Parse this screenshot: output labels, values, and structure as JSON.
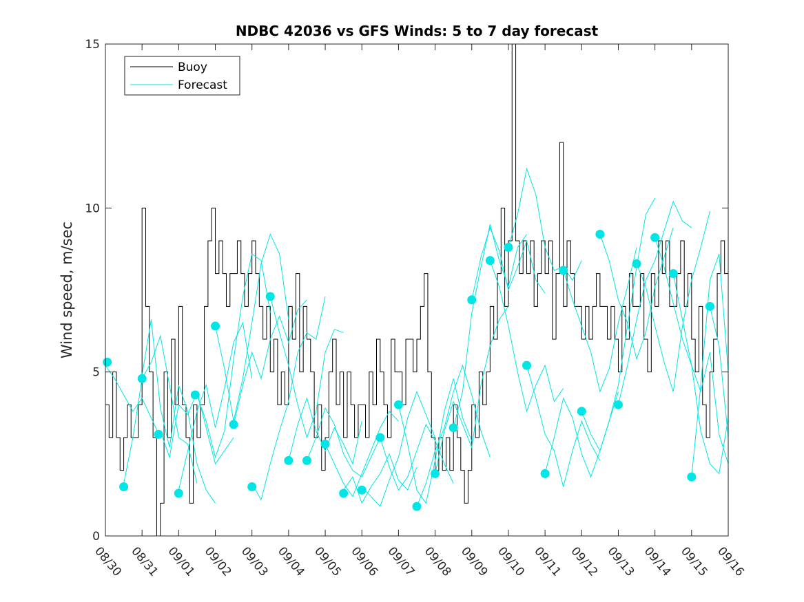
{
  "chart_data": {
    "type": "line",
    "title": "NDBC 42036 vs GFS Winds: 5 to 7 day forecast",
    "xlabel": "",
    "ylabel": "Wind speed, m/sec",
    "xlim": [
      0,
      17
    ],
    "ylim": [
      0,
      15
    ],
    "x_tick_labels": [
      "08/30",
      "08/31",
      "09/01",
      "09/02",
      "09/03",
      "09/04",
      "09/05",
      "09/06",
      "09/07",
      "09/08",
      "09/09",
      "09/10",
      "09/11",
      "09/12",
      "09/13",
      "09/14",
      "09/15",
      "09/16"
    ],
    "y_ticks": [
      0,
      5,
      10,
      15
    ],
    "legend": {
      "position": "top-left",
      "entries": [
        {
          "label": "Buoy",
          "color": "#000000"
        },
        {
          "label": "Forecast",
          "color": "#00e5e5"
        }
      ]
    },
    "series": [
      {
        "name": "Buoy",
        "color": "#000000",
        "x": [
          0,
          0.1,
          0.2,
          0.3,
          0.4,
          0.5,
          0.6,
          0.7,
          0.8,
          0.9,
          1.0,
          1.1,
          1.2,
          1.3,
          1.4,
          1.5,
          1.6,
          1.7,
          1.8,
          1.9,
          2.0,
          2.1,
          2.2,
          2.3,
          2.4,
          2.5,
          2.6,
          2.7,
          2.8,
          2.9,
          3.0,
          3.1,
          3.2,
          3.3,
          3.4,
          3.5,
          3.6,
          3.7,
          3.8,
          3.9,
          4.0,
          4.1,
          4.2,
          4.3,
          4.4,
          4.5,
          4.6,
          4.7,
          4.8,
          4.9,
          5.0,
          5.1,
          5.2,
          5.3,
          5.4,
          5.5,
          5.6,
          5.7,
          5.8,
          5.9,
          6.0,
          6.1,
          6.2,
          6.3,
          6.4,
          6.5,
          6.6,
          6.7,
          6.8,
          6.9,
          7.0,
          7.1,
          7.2,
          7.3,
          7.4,
          7.5,
          7.6,
          7.7,
          7.8,
          7.9,
          8.0,
          8.1,
          8.2,
          8.3,
          8.4,
          8.5,
          8.6,
          8.7,
          8.8,
          8.9,
          9.0,
          9.1,
          9.2,
          9.3,
          9.4,
          9.5,
          9.6,
          9.7,
          9.8,
          9.9,
          10.0,
          10.1,
          10.2,
          10.3,
          10.4,
          10.5,
          10.6,
          10.7,
          10.8,
          10.9,
          11.0,
          11.1,
          11.2,
          11.3,
          11.4,
          11.5,
          11.6,
          11.7,
          11.8,
          11.9,
          12.0,
          12.1,
          12.2,
          12.3,
          12.4,
          12.5,
          12.6,
          12.7,
          12.8,
          12.9,
          13.0,
          13.1,
          13.2,
          13.3,
          13.4,
          13.5,
          13.6,
          13.7,
          13.8,
          13.9,
          14.0,
          14.1,
          14.2,
          14.3,
          14.4,
          14.5,
          14.6,
          14.7,
          14.8,
          14.9,
          15.0,
          15.1,
          15.2,
          15.3,
          15.4,
          15.5,
          15.6,
          15.7,
          15.8,
          15.9,
          16.0,
          16.1,
          16.2,
          16.3,
          16.4,
          16.5,
          16.6,
          16.7,
          16.8,
          16.9,
          17.0
        ],
        "y": [
          4,
          3,
          5,
          3,
          2,
          3,
          4,
          3,
          3,
          4,
          10,
          7,
          5,
          3,
          0,
          1,
          5,
          3,
          6,
          4,
          7,
          4,
          3,
          1,
          4,
          3,
          4,
          7,
          9,
          10,
          8,
          9,
          8,
          7,
          8,
          8,
          9,
          8,
          7,
          8,
          9,
          8,
          7,
          6,
          7,
          5,
          6,
          4,
          5,
          4,
          7,
          6,
          8,
          5,
          7,
          6,
          5,
          3,
          4,
          2,
          3,
          5,
          6,
          4,
          5,
          3,
          5,
          4,
          3,
          4,
          4,
          3,
          5,
          4,
          6,
          5,
          4,
          3,
          6,
          5,
          5,
          4,
          6,
          6,
          5,
          6,
          7,
          8,
          5,
          3,
          2,
          3,
          2,
          3,
          2,
          4,
          3,
          2,
          1,
          2,
          4,
          3,
          5,
          4,
          5,
          7,
          6,
          8,
          10,
          7,
          9,
          15,
          9,
          8,
          9,
          8,
          9,
          7,
          8,
          9,
          8,
          9,
          6,
          8,
          12,
          7,
          9,
          8,
          7,
          7,
          6,
          7,
          6,
          7,
          8,
          7,
          7,
          6,
          7,
          6,
          5,
          7,
          6,
          8,
          7,
          7,
          8,
          6,
          5,
          8,
          7,
          9,
          8,
          9,
          7,
          7,
          8,
          9,
          7,
          8,
          6,
          5,
          7,
          4,
          3,
          5,
          6,
          8,
          9,
          8,
          7
        ]
      }
    ],
    "forecast_segments": [
      {
        "x": [
          0,
          0.25,
          0.5,
          0.75,
          1.0,
          1.25,
          1.5
        ],
        "y": [
          5.2,
          4.8,
          4.3,
          3.8,
          4.2,
          3.6,
          3.0
        ]
      },
      {
        "x": [
          0.5,
          0.75,
          1.0,
          1.25,
          1.5,
          1.75,
          2.0,
          2.25,
          2.5
        ],
        "y": [
          1.6,
          3.0,
          4.8,
          5.3,
          6.1,
          4.6,
          3.0,
          2.8,
          1.6
        ]
      },
      {
        "x": [
          1.0,
          1.25,
          1.5,
          1.75,
          2.0,
          2.25,
          2.5,
          2.75,
          3.0
        ],
        "y": [
          4.9,
          6.6,
          3.9,
          2.7,
          4.6,
          3.8,
          2.2,
          1.4,
          1.0
        ]
      },
      {
        "x": [
          1.5,
          1.75,
          2.0,
          2.25,
          2.5,
          2.75,
          3.0,
          3.25,
          3.5
        ],
        "y": [
          3.2,
          2.4,
          4.0,
          3.7,
          4.4,
          3.3,
          2.2,
          2.6,
          3.0
        ]
      },
      {
        "x": [
          2.0,
          2.25,
          2.5,
          2.75,
          3.0,
          3.25,
          3.5,
          3.75,
          4.0
        ],
        "y": [
          1.4,
          2.6,
          3.8,
          4.6,
          3.3,
          4.5,
          5.9,
          6.5,
          4.8
        ]
      },
      {
        "x": [
          2.5,
          2.75,
          3.0,
          3.25,
          3.5,
          3.75,
          4.0,
          4.25,
          4.5
        ],
        "y": [
          4.3,
          3.5,
          2.4,
          3.2,
          5.4,
          7.3,
          8.6,
          8.4,
          6.8
        ]
      },
      {
        "x": [
          3.0,
          3.25,
          3.5,
          3.75,
          4.0,
          4.25,
          4.5,
          4.75,
          5.0
        ],
        "y": [
          6.4,
          5.1,
          3.5,
          4.8,
          6.5,
          8.3,
          9.2,
          8.6,
          6.6
        ]
      },
      {
        "x": [
          3.5,
          3.75,
          4.0,
          4.25,
          4.5,
          4.75,
          5.0,
          5.25,
          5.5
        ],
        "y": [
          3.4,
          4.6,
          5.6,
          4.8,
          6.0,
          6.7,
          5.9,
          6.9,
          7.2
        ]
      },
      {
        "x": [
          4.0,
          4.25,
          4.5,
          4.75,
          5.0,
          5.25,
          5.5,
          5.75,
          6.0
        ],
        "y": [
          1.6,
          1.1,
          2.2,
          3.2,
          4.1,
          5.6,
          6.2,
          6.0,
          7.3
        ]
      },
      {
        "x": [
          4.5,
          4.75,
          5.0,
          5.25,
          5.5,
          5.75,
          6.0,
          6.25,
          6.5
        ],
        "y": [
          7.3,
          6.2,
          5.2,
          4.0,
          3.0,
          3.8,
          5.6,
          6.3,
          6.2
        ]
      },
      {
        "x": [
          5.0,
          5.25,
          5.5,
          5.75,
          6.0,
          6.25,
          6.5,
          6.75,
          7.0
        ],
        "y": [
          2.3,
          3.4,
          4.2,
          3.2,
          2.6,
          3.3,
          2.8,
          2.2,
          3.5
        ]
      },
      {
        "x": [
          5.5,
          5.75,
          6.0,
          6.25,
          6.5,
          6.75,
          7.0,
          7.25,
          7.5
        ],
        "y": [
          2.3,
          3.0,
          3.9,
          3.4,
          2.5,
          2.0,
          1.8,
          2.4,
          3.0
        ]
      },
      {
        "x": [
          6.0,
          6.25,
          6.5,
          6.75,
          7.0,
          7.25,
          7.5,
          7.75,
          8.0
        ],
        "y": [
          2.8,
          2.2,
          1.6,
          1.2,
          1.9,
          2.6,
          3.3,
          3.8,
          3.5
        ]
      },
      {
        "x": [
          6.5,
          6.75,
          7.0,
          7.25,
          7.5,
          7.75,
          8.0,
          8.25,
          8.5
        ],
        "y": [
          1.4,
          1.8,
          1.0,
          1.5,
          1.9,
          2.5,
          1.7,
          1.4,
          2.1
        ]
      },
      {
        "x": [
          7.0,
          7.25,
          7.5,
          7.75,
          8.0,
          8.25,
          8.5,
          8.75,
          9.0
        ],
        "y": [
          1.5,
          1.2,
          0.9,
          1.7,
          2.4,
          3.6,
          4.4,
          3.7,
          3.0
        ]
      },
      {
        "x": [
          7.5,
          7.75,
          8.0,
          8.25,
          8.5,
          8.75,
          9.0,
          9.25,
          9.5
        ],
        "y": [
          3.0,
          2.1,
          1.4,
          1.8,
          2.6,
          3.4,
          2.9,
          2.2,
          1.6
        ]
      },
      {
        "x": [
          8.0,
          8.25,
          8.5,
          8.75,
          9.0,
          9.25,
          9.5,
          9.75,
          10.0
        ],
        "y": [
          4.0,
          2.8,
          1.4,
          1.0,
          2.3,
          3.8,
          4.8,
          3.6,
          2.9
        ]
      },
      {
        "x": [
          8.5,
          8.75,
          9.0,
          9.25,
          9.5,
          9.75,
          10.0,
          10.25,
          10.5
        ],
        "y": [
          0.9,
          1.6,
          2.6,
          3.3,
          4.4,
          5.2,
          4.3,
          3.2,
          2.4
        ]
      },
      {
        "x": [
          9.0,
          9.25,
          9.5,
          9.75,
          10.0,
          10.25,
          10.5,
          10.75,
          11.0
        ],
        "y": [
          1.9,
          3.2,
          4.1,
          3.4,
          2.7,
          4.6,
          5.8,
          6.6,
          7.0
        ]
      },
      {
        "x": [
          9.5,
          9.75,
          10.0,
          10.25,
          10.5,
          10.75,
          11.0,
          11.25,
          11.5
        ],
        "y": [
          3.3,
          4.4,
          6.8,
          8.2,
          9.5,
          8.4,
          7.6,
          8.8,
          9.2
        ]
      },
      {
        "x": [
          10.0,
          10.25,
          10.5,
          10.75,
          11.0,
          11.25,
          11.5,
          11.75,
          12.0
        ],
        "y": [
          7.2,
          8.5,
          9.4,
          8.7,
          7.5,
          8.2,
          9.0,
          7.8,
          7.4
        ]
      },
      {
        "x": [
          10.5,
          10.75,
          11.0,
          11.25,
          11.5,
          11.75,
          12.0,
          12.25,
          12.5
        ],
        "y": [
          8.4,
          7.6,
          6.4,
          5.0,
          3.8,
          4.6,
          5.2,
          4.1,
          4.5
        ]
      },
      {
        "x": [
          11.0,
          11.25,
          11.5,
          11.75,
          12.0,
          12.25,
          12.5,
          12.75,
          13.0
        ],
        "y": [
          8.8,
          9.8,
          11.2,
          10.4,
          8.8,
          8.1,
          8.2,
          7.8,
          8.4
        ]
      },
      {
        "x": [
          11.5,
          11.75,
          12.0,
          12.25,
          12.5,
          12.75,
          13.0,
          13.25,
          13.5
        ],
        "y": [
          5.2,
          4.2,
          3.1,
          2.6,
          1.5,
          2.6,
          3.5,
          2.8,
          2.3
        ]
      },
      {
        "x": [
          12.0,
          12.25,
          12.5,
          12.75,
          13.0,
          13.25,
          13.5,
          13.75,
          14.0
        ],
        "y": [
          1.9,
          3.0,
          4.2,
          3.6,
          2.5,
          1.8,
          2.6,
          3.5,
          4.4
        ]
      },
      {
        "x": [
          12.5,
          12.75,
          13.0,
          13.25,
          13.5,
          13.75,
          14.0,
          14.25,
          14.5
        ],
        "y": [
          8.1,
          7.2,
          6.4,
          5.6,
          4.4,
          5.1,
          6.5,
          7.6,
          8.8
        ]
      },
      {
        "x": [
          13.0,
          13.25,
          13.5,
          13.75,
          14.0,
          14.25,
          14.5,
          14.75,
          15.0
        ],
        "y": [
          3.8,
          3.1,
          2.6,
          3.5,
          4.6,
          6.4,
          8.2,
          9.8,
          10.3
        ]
      },
      {
        "x": [
          13.5,
          13.75,
          14.0,
          14.25,
          14.5,
          14.75,
          15.0,
          15.25,
          15.5
        ],
        "y": [
          9.2,
          8.4,
          7.2,
          6.5,
          5.4,
          6.2,
          7.6,
          8.5,
          9.4
        ]
      },
      {
        "x": [
          14.0,
          14.25,
          14.5,
          14.75,
          15.0,
          15.25,
          15.5,
          15.75,
          16.0
        ],
        "y": [
          4.0,
          5.2,
          6.6,
          7.8,
          8.4,
          9.3,
          10.2,
          9.6,
          9.4
        ]
      },
      {
        "x": [
          14.5,
          14.75,
          15.0,
          15.25,
          15.5,
          15.75,
          16.0,
          16.25,
          16.5
        ],
        "y": [
          8.3,
          7.6,
          6.4,
          5.3,
          4.4,
          6.4,
          7.8,
          8.8,
          9.9
        ]
      },
      {
        "x": [
          15.0,
          15.25,
          15.5,
          15.75,
          16.0,
          16.25,
          16.5,
          16.75,
          17.0
        ],
        "y": [
          9.1,
          8.2,
          7.1,
          6.0,
          5.2,
          4.4,
          5.6,
          3.1,
          2.2
        ]
      },
      {
        "x": [
          15.5,
          15.75,
          16.0,
          16.25,
          16.5,
          16.75,
          17.0
        ],
        "y": [
          8.0,
          6.6,
          5.2,
          3.2,
          2.2,
          1.9,
          3.6
        ]
      },
      {
        "x": [
          16.0,
          16.25,
          16.5,
          16.75,
          17.0
        ],
        "y": [
          1.8,
          4.6,
          7.8,
          8.6,
          5.0
        ]
      },
      {
        "x": [
          16.5,
          16.75,
          17.0
        ],
        "y": [
          7.0,
          5.8,
          3.0
        ]
      }
    ],
    "forecast_points": {
      "name": "Forecast",
      "x": [
        0.05,
        0.5,
        1.0,
        1.45,
        2.0,
        2.45,
        3.0,
        3.5,
        4.0,
        4.5,
        5.0,
        5.5,
        6.0,
        6.5,
        7.0,
        7.5,
        8.0,
        8.5,
        9.0,
        9.5,
        10.0,
        10.5,
        11.0,
        11.5,
        12.0,
        12.5,
        13.0,
        13.5,
        14.0,
        14.5,
        15.0,
        15.5,
        16.0,
        16.5
      ],
      "y": [
        5.3,
        1.5,
        4.8,
        3.1,
        1.3,
        4.3,
        6.4,
        3.4,
        1.5,
        7.3,
        2.3,
        2.3,
        2.8,
        1.3,
        1.4,
        3.0,
        4.0,
        0.9,
        1.9,
        3.3,
        7.2,
        8.4,
        8.8,
        5.2,
        1.9,
        8.1,
        3.8,
        9.2,
        4.0,
        8.3,
        9.1,
        8.0,
        1.8,
        7.0
      ]
    }
  }
}
